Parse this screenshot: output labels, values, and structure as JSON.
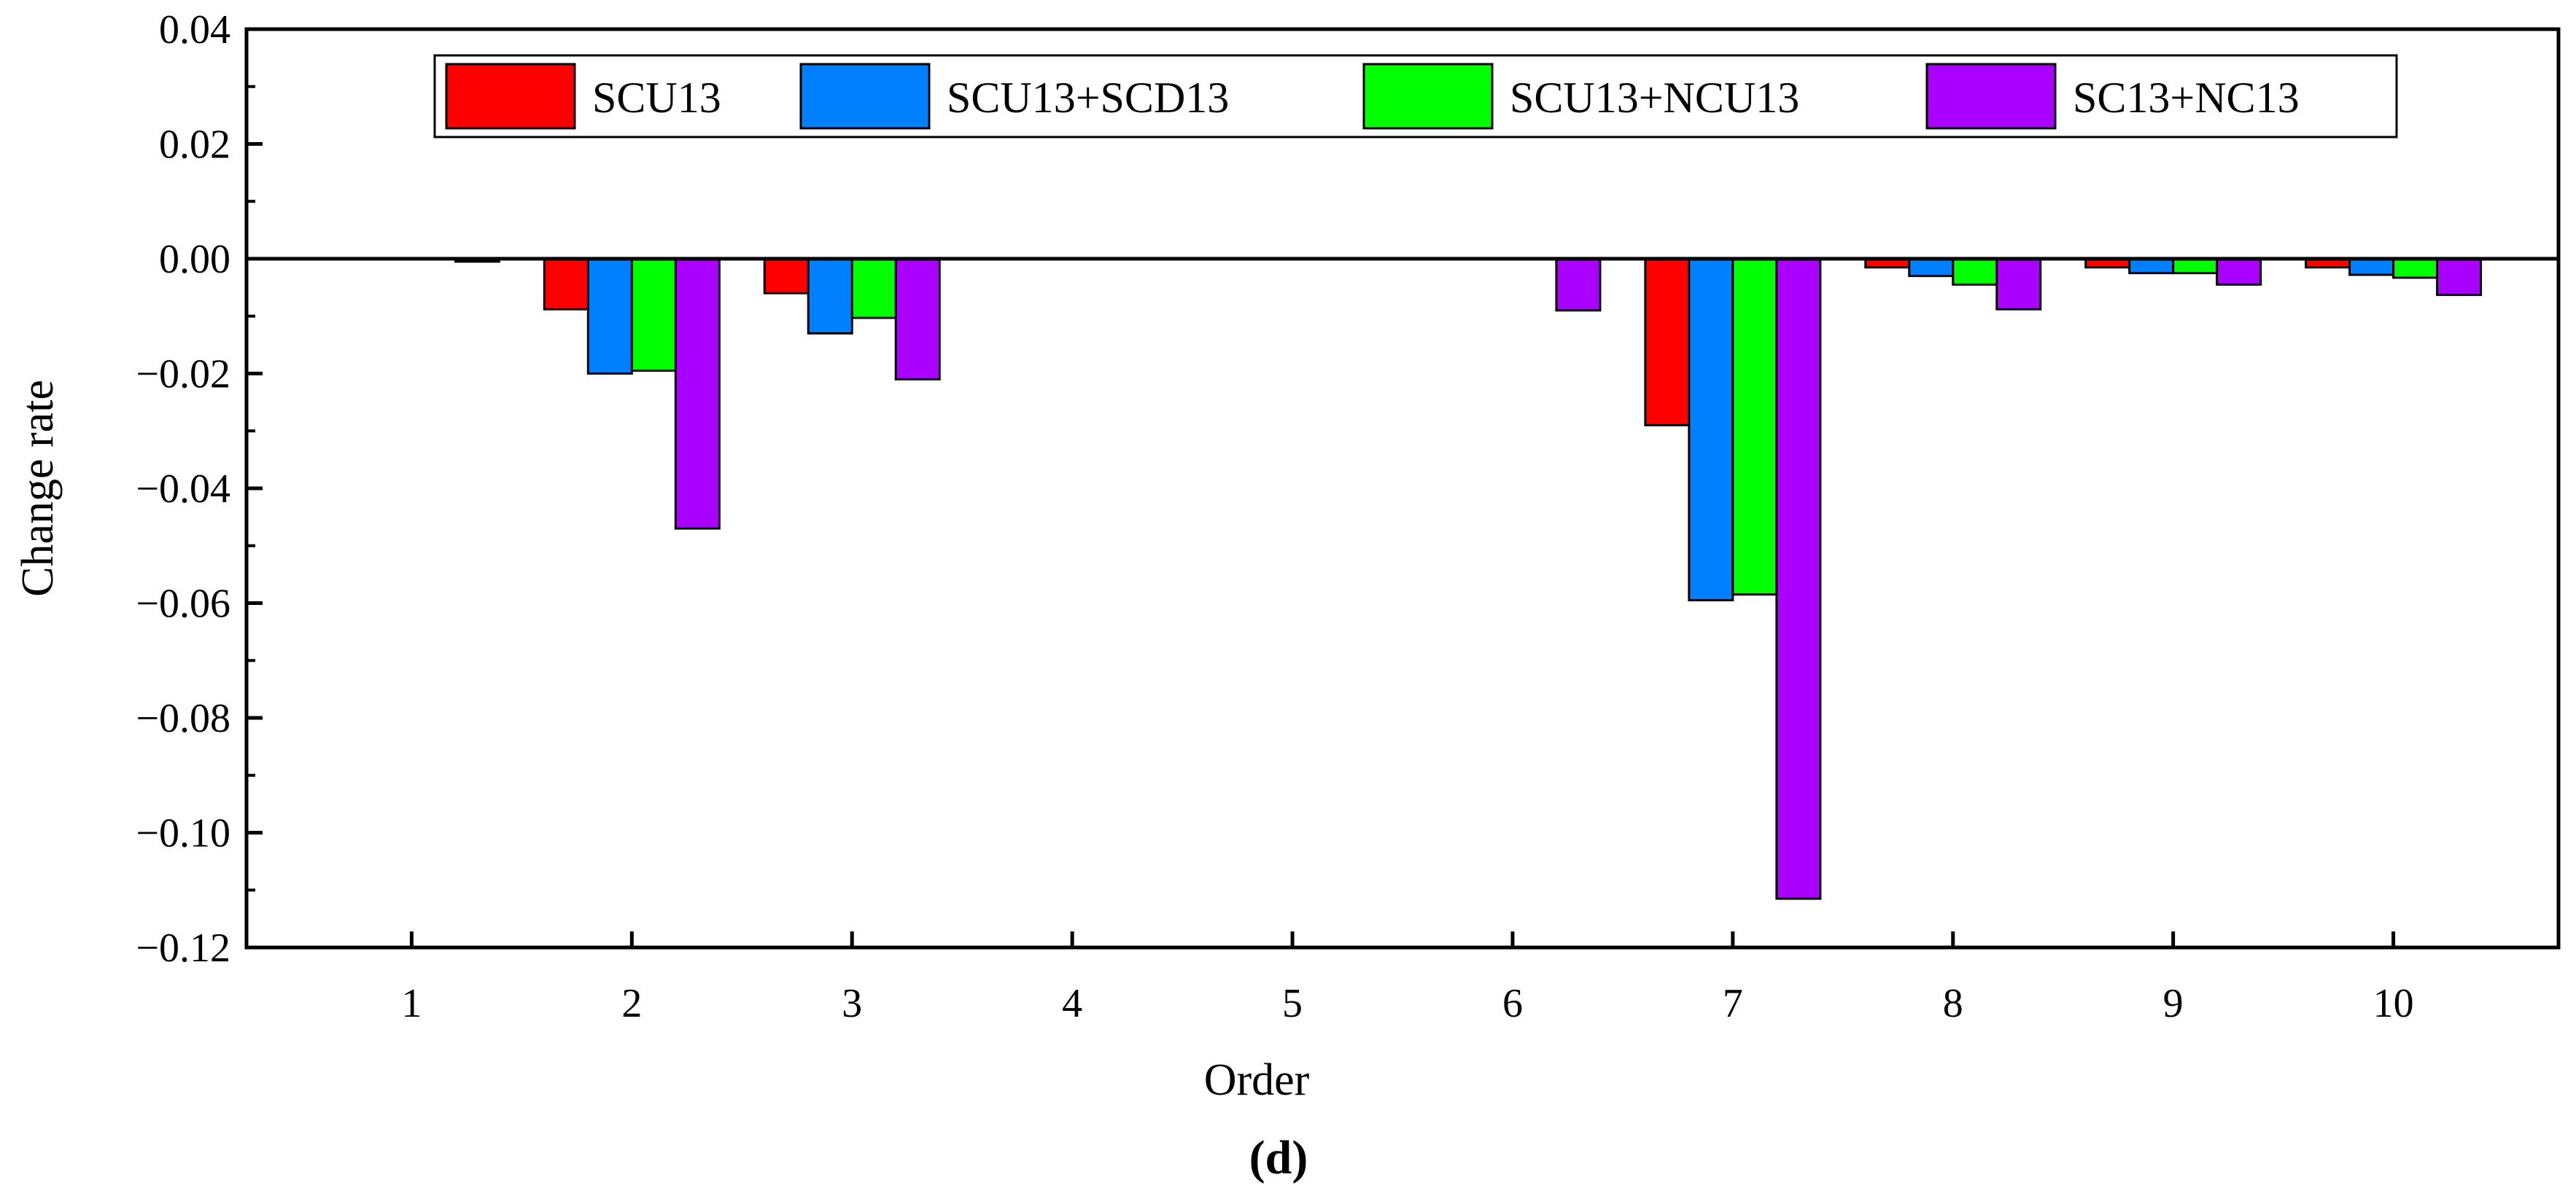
{
  "chart_data": {
    "type": "bar",
    "xlabel": "Order",
    "ylabel": "Change rate",
    "caption": "(d)",
    "categories": [
      "1",
      "2",
      "3",
      "4",
      "5",
      "6",
      "7",
      "8",
      "9",
      "10"
    ],
    "ylim": [
      -0.12,
      0.04
    ],
    "yticks": [
      0.04,
      0.02,
      0.0,
      -0.02,
      -0.04,
      -0.06,
      -0.08,
      -0.1,
      -0.12
    ],
    "ytick_labels": [
      "0.04",
      "0.02",
      "0.00",
      "−0.02",
      "−0.04",
      "−0.06",
      "−0.08",
      "−0.10",
      "−0.12"
    ],
    "legend_position": "top-right",
    "grid": false,
    "series": [
      {
        "name": "SCU13",
        "color": "#ff0000",
        "values": [
          0,
          -0.0088,
          -0.006,
          0,
          0,
          0,
          -0.029,
          -0.0015,
          -0.0015,
          -0.0015
        ]
      },
      {
        "name": "SCU13+SCD13",
        "color": "#0080ff",
        "values": [
          0,
          -0.02,
          -0.013,
          0,
          0,
          0,
          -0.0595,
          -0.003,
          -0.0025,
          -0.0028
        ]
      },
      {
        "name": "SCU13+NCU13",
        "color": "#00ff00",
        "values": [
          0,
          -0.0195,
          -0.0103,
          0,
          0,
          0,
          -0.0585,
          -0.0045,
          -0.0025,
          -0.0033
        ]
      },
      {
        "name": "SC13+NC13",
        "color": "#aa00ff",
        "values": [
          -0.0005,
          -0.047,
          -0.021,
          0,
          0,
          -0.009,
          -0.1115,
          -0.0088,
          -0.0045,
          -0.0063
        ]
      }
    ]
  }
}
